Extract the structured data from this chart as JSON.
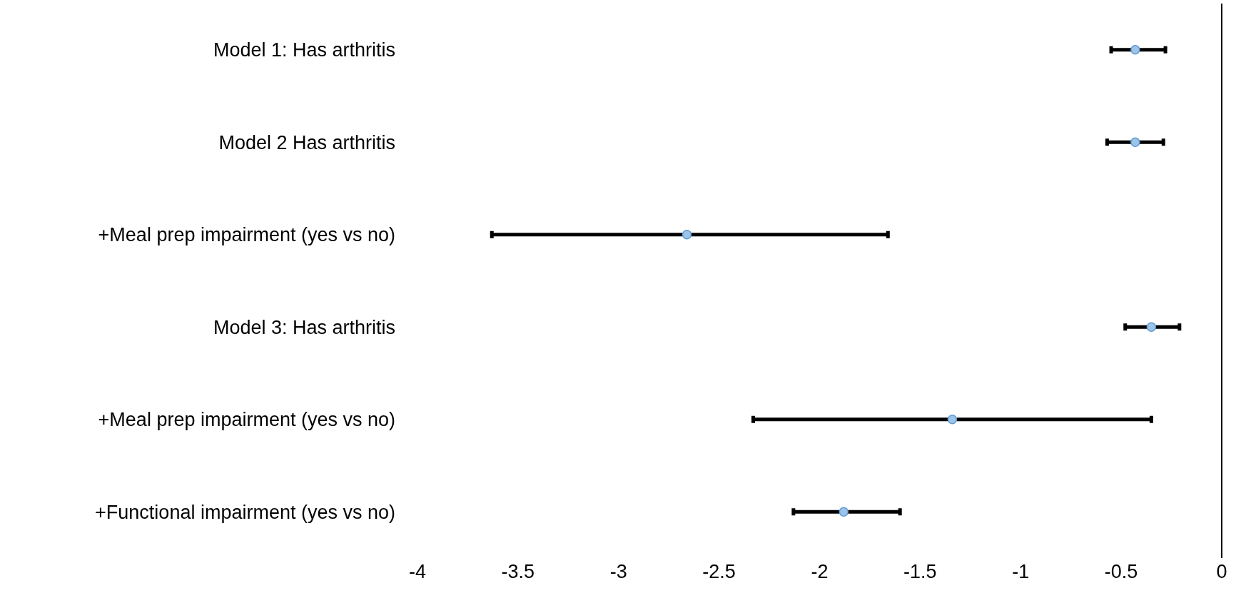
{
  "chart_data": {
    "type": "scatter",
    "orientation": "horizontal",
    "categories": [
      "Model 1: Has arthritis",
      "Model 2 Has arthritis",
      "+Meal prep impairment (yes vs no)",
      "Model 3: Has arthritis",
      "+Meal prep impairment (yes vs no)",
      "+Functional impairment (yes vs no)"
    ],
    "values": [
      -0.43,
      -0.43,
      -2.66,
      -0.35,
      -1.34,
      -1.88
    ],
    "errors": [
      [
        -0.55,
        -0.28
      ],
      [
        -0.57,
        -0.29
      ],
      [
        -3.63,
        -1.66
      ],
      [
        -0.48,
        -0.21
      ],
      [
        -2.33,
        -0.35
      ],
      [
        -2.13,
        -1.6
      ]
    ],
    "color": "#9dc3e6",
    "marker": "circle",
    "xlim": [
      -4,
      0
    ],
    "xticks": [
      -4,
      -3.5,
      -3,
      -2.5,
      -2,
      -1.5,
      -1,
      -0.5,
      0
    ]
  }
}
